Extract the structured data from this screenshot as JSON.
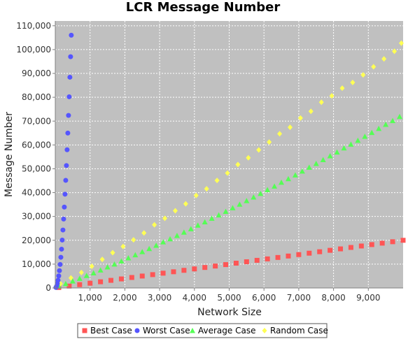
{
  "chart_data": {
    "type": "scatter",
    "title": "LCR Message Number",
    "xlabel": "Network Size",
    "ylabel": "Message Number",
    "xlim": [
      0,
      10000
    ],
    "ylim": [
      0,
      112000
    ],
    "x_ticks": [
      1000,
      2000,
      3000,
      4000,
      5000,
      6000,
      7000,
      8000,
      9000
    ],
    "x_tick_labels": [
      "1,000",
      "2,000",
      "3,000",
      "4,000",
      "5,000",
      "6,000",
      "7,000",
      "8,000",
      "9,000"
    ],
    "y_ticks": [
      0,
      10000,
      20000,
      30000,
      40000,
      50000,
      60000,
      70000,
      80000,
      90000,
      100000,
      110000
    ],
    "y_tick_labels": [
      "0",
      "10,000",
      "20,000",
      "30,000",
      "40,000",
      "50,000",
      "60,000",
      "70,000",
      "80,000",
      "90,000",
      "100,000",
      "110,000"
    ],
    "grid": true,
    "legend_position": "bottom",
    "background_color": "#c0c0c0",
    "series": [
      {
        "name": "Best Case",
        "marker": "square",
        "color": "#ff5555",
        "x": [
          100,
          400,
          700,
          1000,
          1300,
          1600,
          1900,
          2200,
          2500,
          2800,
          3100,
          3400,
          3700,
          4000,
          4300,
          4600,
          4900,
          5200,
          5500,
          5800,
          6100,
          6400,
          6700,
          7000,
          7300,
          7600,
          7900,
          8200,
          8500,
          8800,
          9100,
          9400,
          9700,
          10000
        ],
        "y": [
          200,
          800,
          1400,
          2000,
          2600,
          3200,
          3800,
          4400,
          5000,
          5600,
          6200,
          6800,
          7400,
          8000,
          8600,
          9200,
          9800,
          10400,
          11000,
          11600,
          12200,
          12800,
          13400,
          14000,
          14600,
          15200,
          15800,
          16400,
          17000,
          17600,
          18200,
          18800,
          19400,
          20000
        ]
      },
      {
        "name": "Worst Case",
        "marker": "circle",
        "color": "#5555ff",
        "x": [
          20,
          40,
          60,
          80,
          100,
          120,
          140,
          160,
          180,
          200,
          220,
          240,
          260,
          280,
          300,
          320,
          340,
          360,
          380,
          400,
          420,
          440,
          460
        ],
        "y": [
          210,
          820,
          1830,
          3240,
          5050,
          7260,
          9870,
          12880,
          16290,
          20100,
          24310,
          28920,
          33930,
          39340,
          45150,
          51360,
          57970,
          64980,
          72390,
          80200,
          88410,
          97020,
          106030
        ]
      },
      {
        "name": "Average Case",
        "marker": "triangle",
        "color": "#55ff55",
        "x": [
          100,
          300,
          500,
          700,
          900,
          1100,
          1300,
          1500,
          1700,
          1900,
          2100,
          2300,
          2500,
          2700,
          2900,
          3100,
          3300,
          3500,
          3700,
          3900,
          4100,
          4300,
          4500,
          4700,
          4900,
          5100,
          5300,
          5500,
          5700,
          5900,
          6100,
          6300,
          6500,
          6700,
          6900,
          7100,
          7300,
          7500,
          7700,
          7900,
          8100,
          8300,
          8500,
          8700,
          8900,
          9100,
          9300,
          9500,
          9700,
          9900
        ],
        "y": [
          800,
          1800,
          2900,
          4000,
          5200,
          6300,
          7500,
          8800,
          10000,
          11300,
          12600,
          13900,
          15200,
          16500,
          17900,
          19300,
          20600,
          22000,
          23400,
          24800,
          26300,
          27700,
          29200,
          30600,
          32100,
          33600,
          35100,
          36600,
          38100,
          39600,
          41200,
          42700,
          44300,
          45800,
          47400,
          49000,
          50600,
          52200,
          53800,
          55400,
          57000,
          58700,
          60300,
          61900,
          63600,
          65200,
          66900,
          68600,
          70200,
          71900
        ]
      },
      {
        "name": "Random Case",
        "marker": "diamond",
        "color": "#ffff55",
        "x": [
          150,
          450,
          750,
          1050,
          1350,
          1650,
          1950,
          2250,
          2550,
          2850,
          3150,
          3450,
          3750,
          4050,
          4350,
          4650,
          4950,
          5250,
          5550,
          5850,
          6150,
          6450,
          6750,
          7050,
          7350,
          7650,
          7950,
          8250,
          8550,
          8850,
          9150,
          9450,
          9750,
          9950
        ],
        "y": [
          1800,
          4200,
          6500,
          9100,
          12000,
          14800,
          17400,
          20200,
          23100,
          26500,
          29200,
          32400,
          35300,
          38800,
          41600,
          45100,
          48200,
          51800,
          54600,
          57900,
          61200,
          64700,
          67400,
          71300,
          74100,
          77900,
          80600,
          83800,
          86200,
          89400,
          92800,
          96100,
          99300,
          102700
        ]
      }
    ]
  }
}
